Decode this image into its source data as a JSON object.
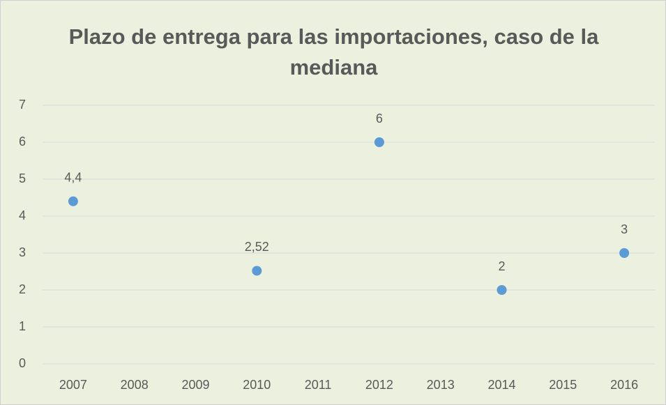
{
  "chart_data": {
    "type": "scatter",
    "title": "Plazo de entrega para las importaciones, caso de la mediana",
    "x": [
      2007,
      2010,
      2012,
      2014,
      2016
    ],
    "values": [
      4.4,
      2.52,
      6,
      2,
      3
    ],
    "value_labels": [
      "4,4",
      "2,52",
      "6",
      "2",
      "3"
    ],
    "color": "#5b9bd5",
    "xlim": [
      2006.5,
      2016.5
    ],
    "xticks": [
      2007,
      2008,
      2009,
      2010,
      2011,
      2012,
      2013,
      2014,
      2015,
      2016
    ],
    "ylim": [
      0,
      7
    ],
    "yticks": [
      0,
      1,
      2,
      3,
      4,
      5,
      6,
      7
    ],
    "grid": true
  }
}
